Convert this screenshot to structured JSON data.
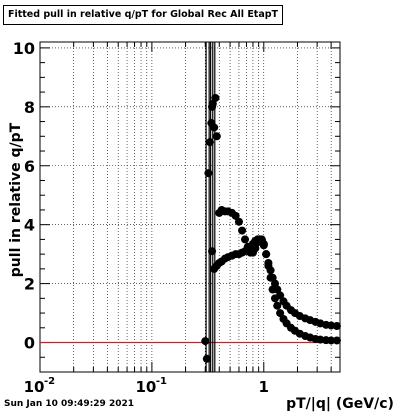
{
  "title": "Fitted pull in relative q/pT for Global Rec All EtapT",
  "timestamp": "Sun Jan 10 09:49:29 2021",
  "colors": {
    "reference_line": "#d62020",
    "markers": "#000000",
    "grid": "#000000"
  },
  "chart_data": {
    "type": "scatter",
    "title": "Fitted pull in relative q/pT for Global Rec All EtapT",
    "xlabel": "pT/|q| (GeV/c)",
    "ylabel": "pull in relative q/pT",
    "xscale": "log",
    "xlim": [
      0.01,
      4.8
    ],
    "ylim": [
      -1,
      10.2
    ],
    "grid": true,
    "x_tick_labels": [
      {
        "value": 0.01,
        "label": "10",
        "exponent": "-2"
      },
      {
        "value": 0.1,
        "label": "10",
        "exponent": "-1"
      },
      {
        "value": 1,
        "label": "1",
        "exponent": ""
      }
    ],
    "y_tick_labels": [
      0,
      2,
      4,
      6,
      8,
      10
    ],
    "reference_line": {
      "y": 0
    },
    "series": [
      {
        "values": [
          [
            0.3,
            0.05
          ],
          [
            0.31,
            -0.55
          ],
          [
            0.32,
            5.75
          ],
          [
            0.33,
            6.8
          ],
          [
            0.34,
            7.45
          ],
          [
            0.345,
            8.0
          ],
          [
            0.35,
            8.1
          ],
          [
            0.36,
            7.3
          ],
          [
            0.37,
            8.3
          ],
          [
            0.38,
            7.0
          ],
          [
            0.4,
            4.4
          ],
          [
            0.42,
            4.5
          ],
          [
            0.45,
            4.45
          ],
          [
            0.48,
            4.45
          ],
          [
            0.52,
            4.4
          ],
          [
            0.56,
            4.3
          ],
          [
            0.6,
            4.1
          ],
          [
            0.64,
            3.8
          ],
          [
            0.68,
            3.5
          ],
          [
            0.72,
            3.25
          ],
          [
            0.76,
            3.05
          ],
          [
            0.8,
            3.05
          ],
          [
            0.84,
            3.2
          ],
          [
            0.88,
            3.4
          ],
          [
            0.92,
            3.5
          ],
          [
            0.96,
            3.5
          ],
          [
            1.0,
            3.35
          ],
          [
            1.05,
            3.0
          ],
          [
            1.1,
            2.7
          ],
          [
            1.15,
            2.45
          ],
          [
            1.2,
            2.2
          ],
          [
            1.26,
            2.0
          ],
          [
            1.32,
            1.8
          ],
          [
            1.4,
            1.6
          ],
          [
            1.5,
            1.4
          ],
          [
            1.6,
            1.25
          ],
          [
            1.75,
            1.1
          ],
          [
            1.9,
            1.0
          ],
          [
            2.1,
            0.9
          ],
          [
            2.35,
            0.82
          ],
          [
            2.6,
            0.76
          ],
          [
            2.9,
            0.7
          ],
          [
            3.2,
            0.65
          ],
          [
            3.6,
            0.6
          ],
          [
            4.0,
            0.58
          ],
          [
            4.5,
            0.56
          ]
        ]
      },
      {
        "values": [
          [
            0.345,
            3.1
          ],
          [
            0.36,
            2.5
          ],
          [
            0.38,
            2.6
          ],
          [
            0.4,
            2.7
          ],
          [
            0.42,
            2.75
          ],
          [
            0.45,
            2.85
          ],
          [
            0.48,
            2.9
          ],
          [
            0.52,
            2.95
          ],
          [
            0.56,
            3.0
          ],
          [
            0.6,
            3.0
          ],
          [
            0.64,
            3.05
          ],
          [
            0.68,
            3.1
          ],
          [
            0.72,
            3.2
          ],
          [
            0.76,
            3.25
          ],
          [
            0.8,
            3.35
          ],
          [
            0.84,
            3.45
          ],
          [
            0.88,
            3.5
          ],
          [
            0.92,
            3.5
          ],
          [
            0.96,
            3.45
          ],
          [
            1.0,
            3.3
          ],
          [
            1.05,
            3.0
          ],
          [
            1.1,
            2.6
          ],
          [
            1.15,
            2.2
          ],
          [
            1.2,
            1.8
          ],
          [
            1.26,
            1.5
          ],
          [
            1.32,
            1.25
          ],
          [
            1.4,
            1.0
          ],
          [
            1.5,
            0.8
          ],
          [
            1.6,
            0.65
          ],
          [
            1.75,
            0.5
          ],
          [
            1.9,
            0.4
          ],
          [
            2.1,
            0.3
          ],
          [
            2.35,
            0.22
          ],
          [
            2.6,
            0.17
          ],
          [
            2.9,
            0.12
          ],
          [
            3.2,
            0.1
          ],
          [
            3.6,
            0.08
          ],
          [
            4.0,
            0.07
          ],
          [
            4.5,
            0.07
          ]
        ]
      }
    ]
  }
}
